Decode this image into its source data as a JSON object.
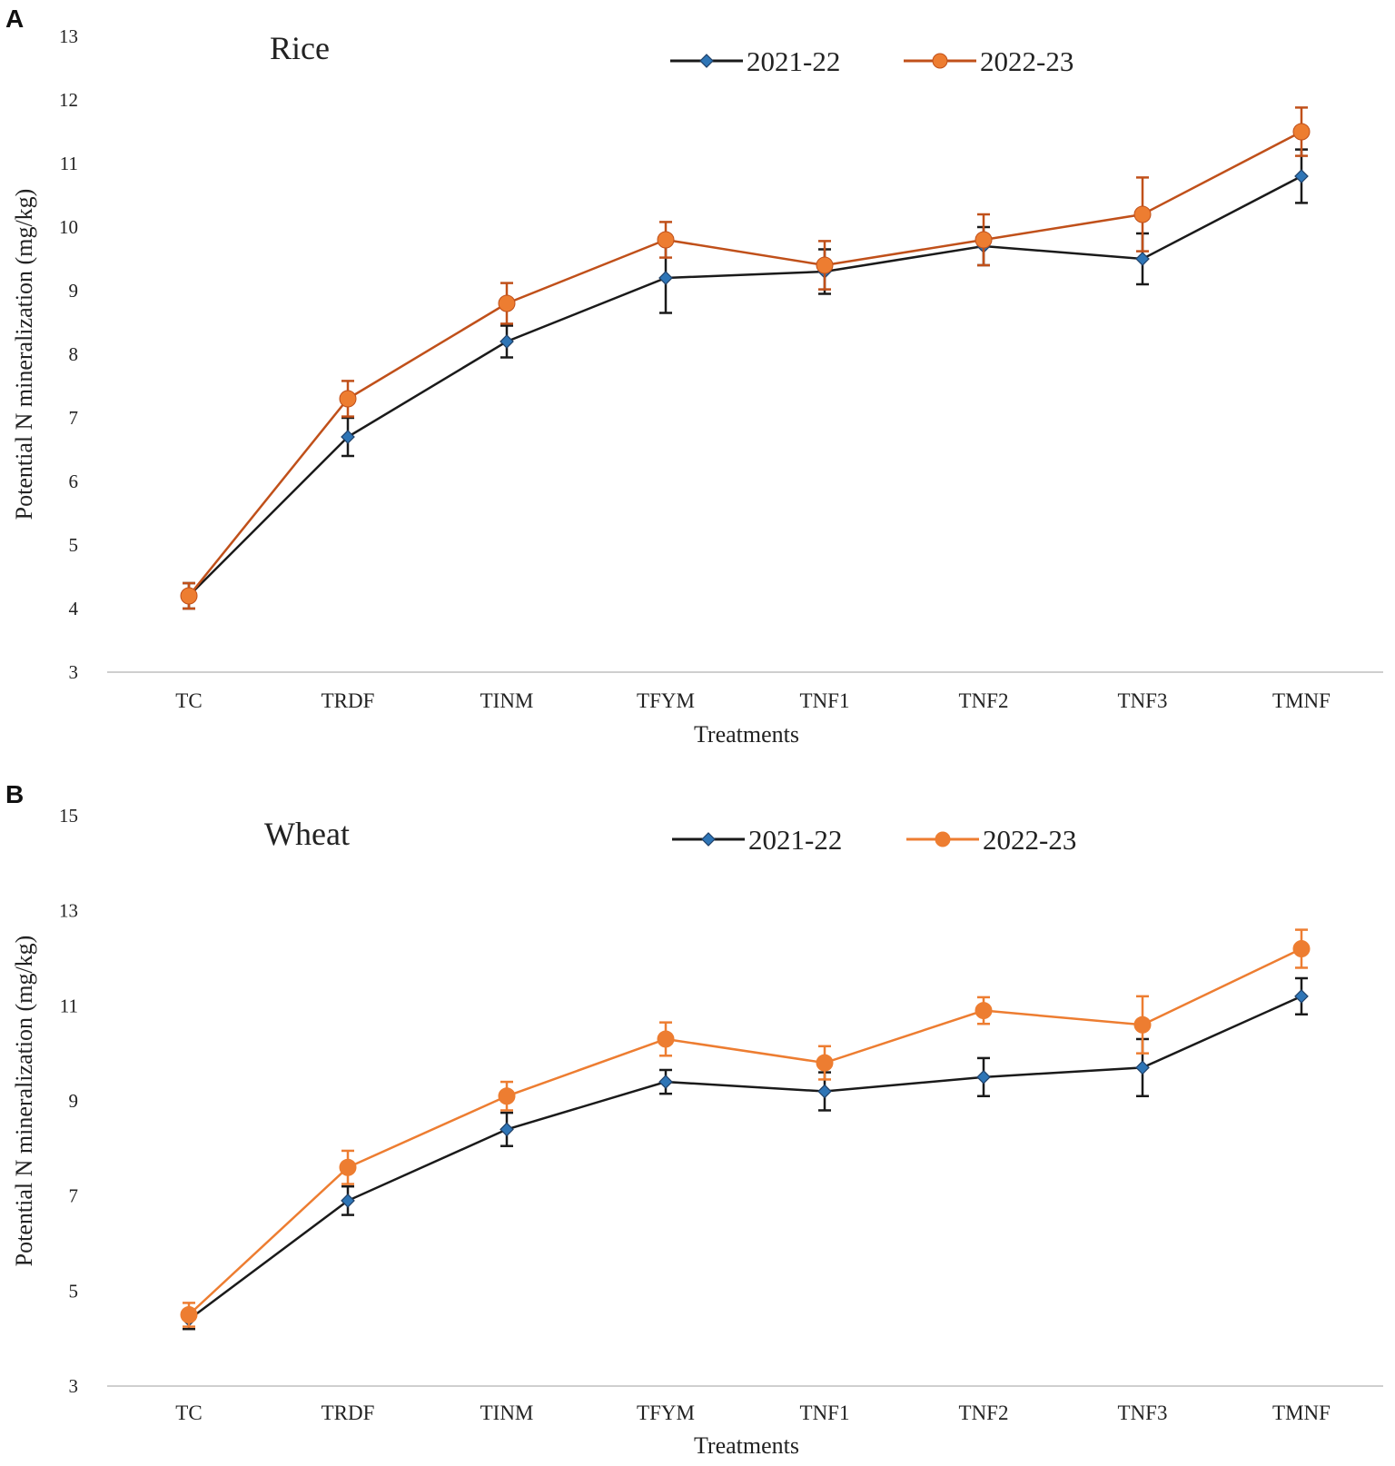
{
  "figure": {
    "panels": [
      "A",
      "B"
    ]
  },
  "chart_data": [
    {
      "type": "line",
      "panel": "A",
      "title": "Rice",
      "xlabel": "Treatments",
      "ylabel": "Potential N mineralization (mg/kg)",
      "categories": [
        "TC",
        "TRDF",
        "TINM",
        "TFYM",
        "TNF1",
        "TNF2",
        "TNF3",
        "TMNF"
      ],
      "ylim": [
        3,
        13
      ],
      "yticks": [
        3,
        4,
        5,
        6,
        7,
        8,
        9,
        10,
        11,
        12,
        13
      ],
      "grid": false,
      "legend_position": "top",
      "series": [
        {
          "name": "2021-22",
          "color": "#1a1a1a",
          "marker": "diamond",
          "marker_color": "#2e75b6",
          "values": [
            4.2,
            6.7,
            8.2,
            9.2,
            9.3,
            9.7,
            9.5,
            10.8
          ],
          "errors": [
            0.2,
            0.3,
            0.25,
            0.55,
            0.35,
            0.3,
            0.4,
            0.42
          ]
        },
        {
          "name": "2022-23",
          "color": "#c0501a",
          "marker": "circle",
          "marker_color": "#ed7d31",
          "values": [
            4.2,
            7.3,
            8.8,
            9.8,
            9.4,
            9.8,
            10.2,
            11.5
          ],
          "errors": [
            0.2,
            0.28,
            0.32,
            0.28,
            0.38,
            0.4,
            0.58,
            0.38
          ]
        }
      ]
    },
    {
      "type": "line",
      "panel": "B",
      "title": "Wheat",
      "xlabel": "Treatments",
      "ylabel": "Potential N mineralization (mg/kg)",
      "categories": [
        "TC",
        "TRDF",
        "TINM",
        "TFYM",
        "TNF1",
        "TNF2",
        "TNF3",
        "TMNF"
      ],
      "ylim": [
        3,
        15
      ],
      "yticks": [
        3,
        5,
        7,
        9,
        11,
        13,
        15
      ],
      "grid": false,
      "legend_position": "top",
      "series": [
        {
          "name": "2021-22",
          "color": "#1a1a1a",
          "marker": "diamond",
          "marker_color": "#2e75b6",
          "values": [
            4.4,
            6.9,
            8.4,
            9.4,
            9.2,
            9.5,
            9.7,
            11.2
          ],
          "errors": [
            0.2,
            0.3,
            0.35,
            0.25,
            0.4,
            0.4,
            0.6,
            0.38
          ]
        },
        {
          "name": "2022-23",
          "color": "#ed7d31",
          "marker": "circle",
          "marker_color": "#ed7d31",
          "values": [
            4.5,
            7.6,
            9.1,
            10.3,
            9.8,
            10.9,
            10.6,
            12.2
          ],
          "errors": [
            0.25,
            0.35,
            0.3,
            0.35,
            0.35,
            0.28,
            0.6,
            0.4
          ]
        }
      ]
    }
  ]
}
